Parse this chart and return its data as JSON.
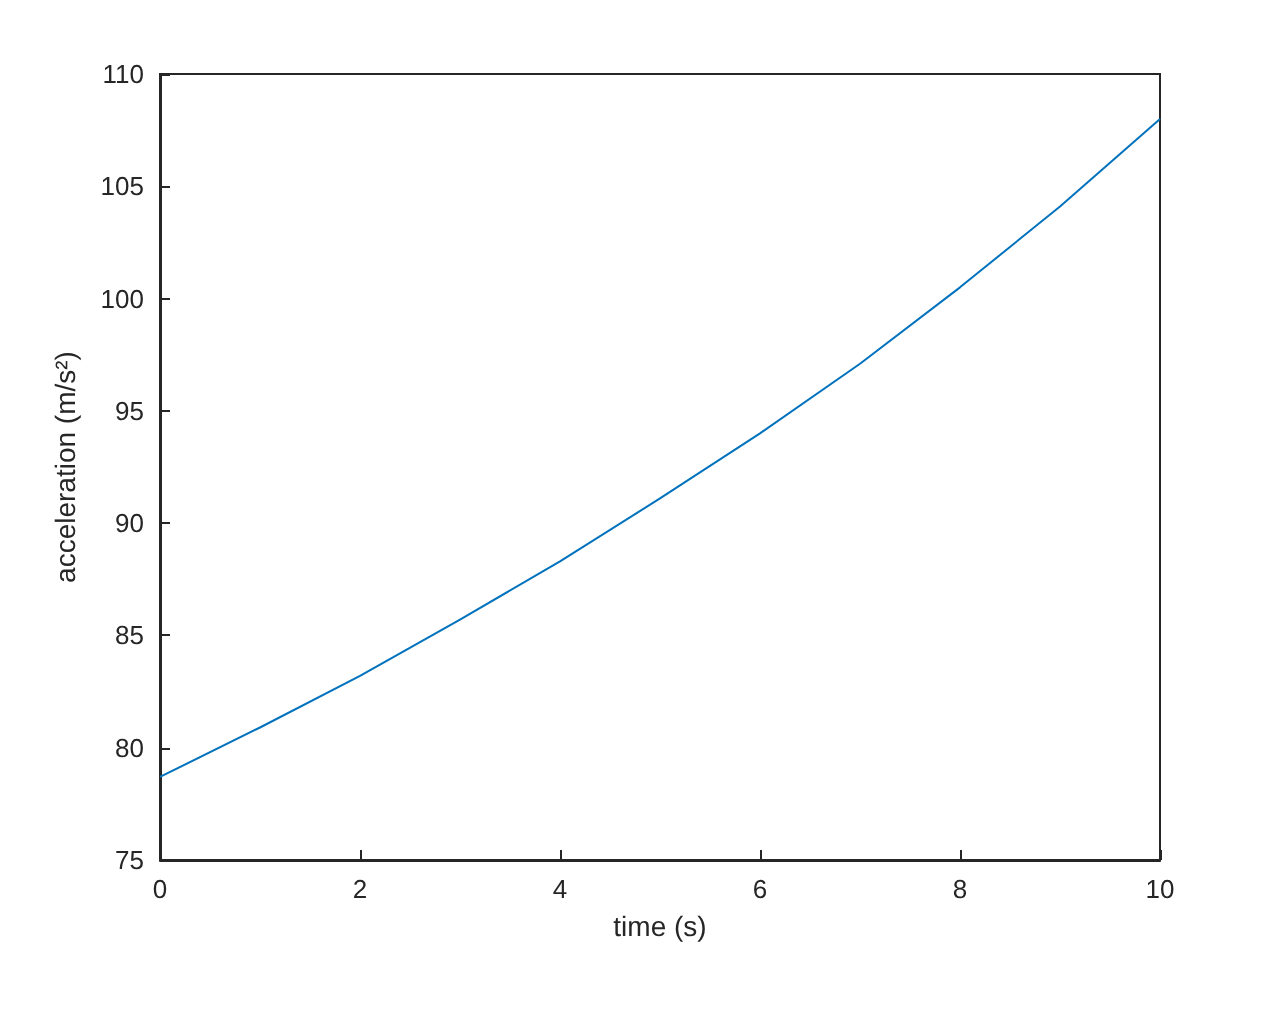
{
  "chart_data": {
    "type": "line",
    "xlabel": "time (s)",
    "ylabel": "acceleration (m/s²)",
    "x": [
      0,
      1,
      2,
      3,
      4,
      5,
      6,
      7,
      8,
      9,
      10
    ],
    "series": [
      {
        "color": "#0072bd",
        "values": [
          78.7,
          80.9,
          83.2,
          85.7,
          88.3,
          91.1,
          94.0,
          97.1,
          100.5,
          104.1,
          108.0
        ]
      }
    ],
    "xlim": [
      0,
      10
    ],
    "xticks": [
      0,
      2,
      4,
      6,
      8,
      10
    ],
    "ylim": [
      75,
      110
    ],
    "yticks": [
      75,
      80,
      85,
      90,
      95,
      100,
      105,
      110
    ],
    "grid": false
  }
}
